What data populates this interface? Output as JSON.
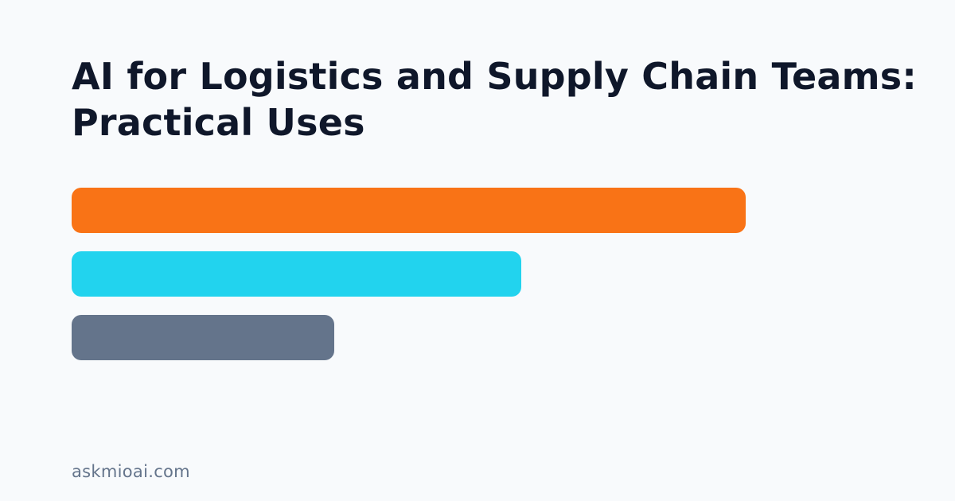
{
  "title_lines": [
    "AI for Logistics and Supply Chain Teams:",
    "Practical Uses"
  ],
  "bars": [
    {
      "level": 0.847,
      "color": "#f97316"
    },
    {
      "level": 0.565,
      "color": "#22d3ee"
    },
    {
      "level": 0.33,
      "color": "#64748b"
    }
  ],
  "footer": {
    "site": "askmioai.com"
  }
}
